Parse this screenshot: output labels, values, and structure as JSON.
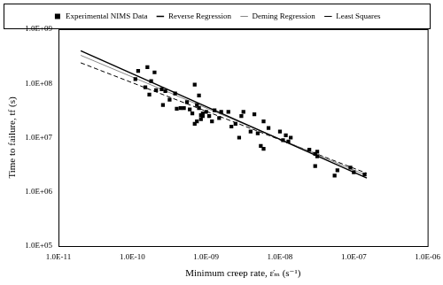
{
  "chart_data": {
    "type": "scatter",
    "x_label": "Minimum creep rate, ε̇ₘ (s⁻¹)",
    "y_label": "Time to failure, tf (s)",
    "log": true,
    "grid": false,
    "legend": "top",
    "xlim": [
      1e-11,
      1e-06
    ],
    "xticks": [
      {
        "value": 1e-11,
        "label": "1.0E-11"
      },
      {
        "value": 1e-10,
        "label": "1.0E-10"
      },
      {
        "value": 1e-09,
        "label": "1.0E-09"
      },
      {
        "value": 1e-08,
        "label": "1.0E-08"
      },
      {
        "value": 1e-07,
        "label": "1.0E-07"
      },
      {
        "value": 1e-06,
        "label": "1.0E-06"
      }
    ],
    "ylim": [
      100000.0,
      1000000000.0
    ],
    "yticks": [
      {
        "value": 100000.0,
        "label": "1.0E+05"
      },
      {
        "value": 1000000.0,
        "label": "1.0E+06"
      },
      {
        "value": 10000000.0,
        "label": "1.0E+07"
      },
      {
        "value": 100000000.0,
        "label": "1.0E+08"
      },
      {
        "value": 1000000000.0,
        "label": "1.0E+09"
      }
    ],
    "series": [
      {
        "name": "Experimental NIMS Data",
        "type": "scatter",
        "color": "#000000",
        "marker": "square",
        "x": [
          1.1e-10,
          1.2e-10,
          1.5e-10,
          1.6e-10,
          1.7e-10,
          1.8e-10,
          2e-10,
          2.1e-10,
          2.5e-10,
          2.6e-10,
          2.8e-10,
          3.2e-10,
          3.8e-10,
          4e-10,
          4.5e-10,
          5e-10,
          5.5e-10,
          6e-10,
          6.5e-10,
          7e-10,
          7e-10,
          7.5e-10,
          7.5e-10,
          8e-10,
          8e-10,
          8.5e-10,
          8.5e-10,
          9e-10,
          9e-10,
          1e-09,
          1.1e-09,
          1.2e-09,
          1.3e-09,
          1.5e-09,
          1.6e-09,
          2e-09,
          2.2e-09,
          2.5e-09,
          2.8e-09,
          3e-09,
          3.2e-09,
          4e-09,
          4.5e-09,
          5e-09,
          5.5e-09,
          6e-09,
          6e-09,
          7e-09,
          1e-08,
          1.1e-08,
          1.2e-08,
          1.3e-08,
          1.4e-08,
          2.5e-08,
          3e-08,
          3e-08,
          3.2e-08,
          3.2e-08,
          5.5e-08,
          6e-08,
          9e-08,
          1e-07,
          1.4e-07
        ],
        "values": [
          120000000.0,
          170000000.0,
          85000000.0,
          200000000.0,
          62000000.0,
          110000000.0,
          160000000.0,
          75000000.0,
          78000000.0,
          40000000.0,
          72000000.0,
          50000000.0,
          65000000.0,
          34000000.0,
          35000000.0,
          35000000.0,
          45000000.0,
          33000000.0,
          28000000.0,
          95000000.0,
          18000000.0,
          20000000.0,
          40000000.0,
          35000000.0,
          60000000.0,
          26000000.0,
          22000000.0,
          25000000.0,
          28000000.0,
          30000000.0,
          25000000.0,
          20000000.0,
          32000000.0,
          23000000.0,
          30000000.0,
          30000000.0,
          16000000.0,
          18000000.0,
          10000000.0,
          25000000.0,
          30000000.0,
          13000000.0,
          27000000.0,
          12000000.0,
          7000000.0,
          6200000.0,
          20000000.0,
          15000000.0,
          13000000.0,
          9000000.0,
          11000000.0,
          8500000.0,
          10000000.0,
          6000000.0,
          3000000.0,
          5000000.0,
          4500000.0,
          5500000.0,
          2000000.0,
          2500000.0,
          2800000.0,
          2300000.0,
          2100000.0
        ]
      },
      {
        "name": "Reverse Regression",
        "type": "line",
        "color": "#000000",
        "line_style": "solid",
        "x": [
          2e-11,
          1.5e-07
        ],
        "values": [
          400000000.0,
          1800000.0
        ]
      },
      {
        "name": "Deming Regression",
        "type": "line",
        "color": "#888888",
        "line_style": "solid",
        "x": [
          2e-11,
          1.5e-07
        ],
        "values": [
          330000000.0,
          2000000.0
        ]
      },
      {
        "name": "Least Squares",
        "type": "line",
        "color": "#000000",
        "line_style": "dashed",
        "x": [
          2e-11,
          1.5e-07
        ],
        "values": [
          240000000.0,
          2200000.0
        ]
      }
    ]
  }
}
